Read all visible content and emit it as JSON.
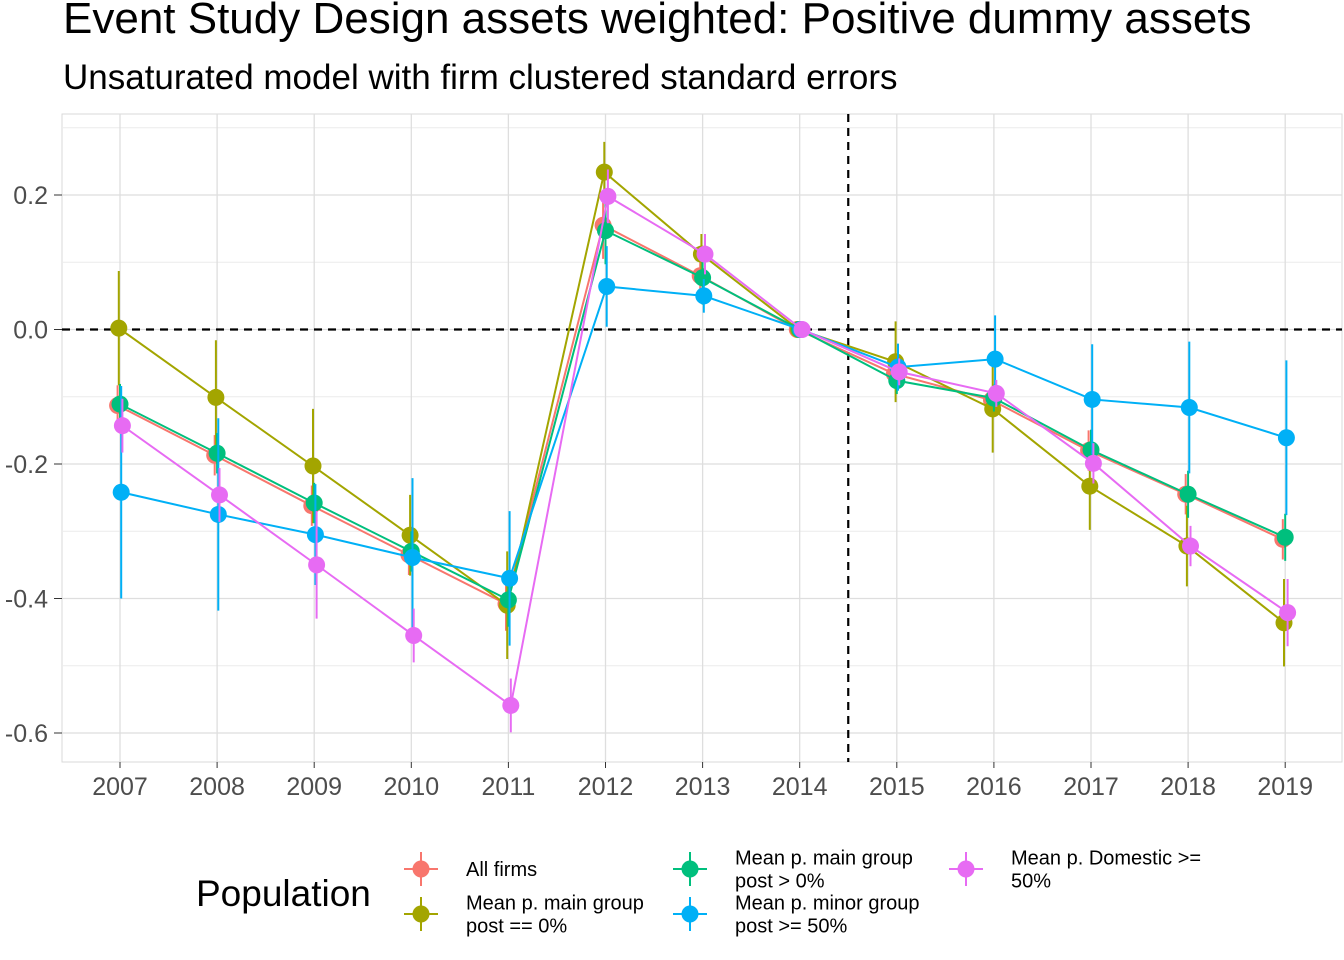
{
  "chart_data": {
    "type": "line",
    "title": "Event Study Design assets weighted: Positive dummy assets",
    "subtitle": "Unsaturated model with firm clustered standard errors",
    "xlabel": "",
    "ylabel": "",
    "categories": [
      "2007",
      "2008",
      "2009",
      "2010",
      "2011",
      "2012",
      "2013",
      "2014",
      "2015",
      "2016",
      "2017",
      "2018",
      "2019"
    ],
    "ylim": [
      -0.64,
      0.32
    ],
    "yticks": [
      0.2,
      0.0,
      -0.2,
      -0.4,
      -0.6
    ],
    "ytick_labels": [
      "0.2",
      "0.0",
      "-0.2",
      "-0.4",
      "-0.6"
    ],
    "reference_lines": {
      "y": 0.0,
      "x_between": [
        "2014",
        "2015"
      ],
      "style": "dashed"
    },
    "grid": true,
    "legend": {
      "title": "Population",
      "position": "bottom"
    },
    "series": [
      {
        "name": "All firms",
        "color": "#F8766D",
        "values": [
          -0.113,
          -0.187,
          -0.262,
          -0.335,
          -0.408,
          0.155,
          0.08,
          0.0,
          -0.066,
          -0.105,
          -0.18,
          -0.245,
          -0.312
        ],
        "err": [
          0.03,
          0.03,
          0.03,
          0.03,
          0.04,
          0.05,
          0.04,
          0.0,
          0.02,
          0.02,
          0.03,
          0.03,
          0.03
        ]
      },
      {
        "name": "Mean p. main group post == 0%",
        "color": "#A3A500",
        "values": [
          0.002,
          -0.101,
          -0.203,
          -0.306,
          -0.41,
          0.234,
          0.112,
          0.0,
          -0.048,
          -0.118,
          -0.233,
          -0.322,
          -0.436
        ],
        "err": [
          0.085,
          0.085,
          0.085,
          0.06,
          0.08,
          0.045,
          0.03,
          0.0,
          0.06,
          0.065,
          0.065,
          0.06,
          0.065
        ]
      },
      {
        "name": "Mean p. main group post > 0%",
        "color": "#00BF7D",
        "values": [
          -0.111,
          -0.184,
          -0.258,
          -0.33,
          -0.402,
          0.147,
          0.077,
          0.0,
          -0.076,
          -0.102,
          -0.179,
          -0.245,
          -0.309
        ],
        "err": [
          0.03,
          0.03,
          0.03,
          0.03,
          0.04,
          0.05,
          0.04,
          0.0,
          0.02,
          0.02,
          0.03,
          0.035,
          0.035
        ]
      },
      {
        "name": "Mean p. minor group post >= 50%",
        "color": "#00B0F6",
        "values": [
          -0.242,
          -0.275,
          -0.305,
          -0.339,
          -0.37,
          0.064,
          0.05,
          0.0,
          -0.056,
          -0.044,
          -0.104,
          -0.116,
          -0.161
        ],
        "err": [
          0.158,
          0.143,
          0.075,
          0.118,
          0.1,
          0.06,
          0.025,
          0.0,
          0.035,
          0.065,
          0.082,
          0.098,
          0.115
        ]
      },
      {
        "name": "Mean p. Domestic >= 50%",
        "color": "#E76BF3",
        "values": [
          -0.143,
          -0.246,
          -0.35,
          -0.455,
          -0.559,
          0.198,
          0.112,
          0.0,
          -0.063,
          -0.095,
          -0.199,
          -0.322,
          -0.421
        ],
        "err": [
          0.04,
          0.04,
          0.08,
          0.04,
          0.04,
          0.04,
          0.03,
          0.0,
          0.02,
          0.02,
          0.03,
          0.03,
          0.05
        ]
      }
    ]
  }
}
